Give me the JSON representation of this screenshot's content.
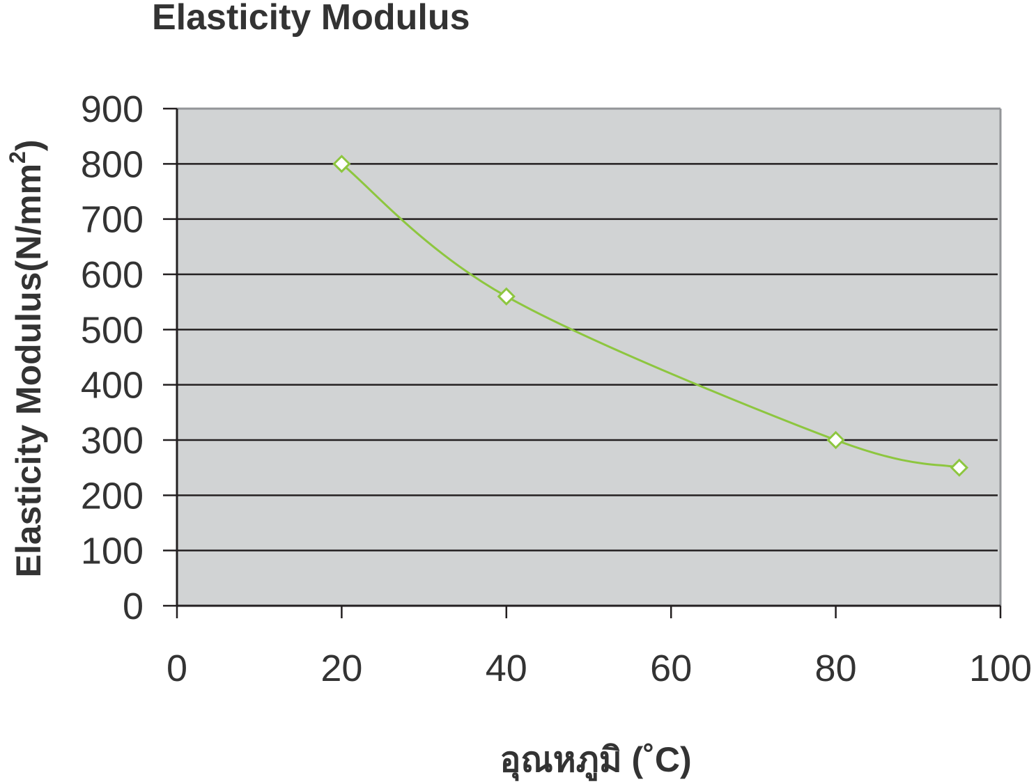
{
  "chart_data": {
    "type": "line",
    "title": "Elasticity Modulus",
    "xlabel": "อุณหภูมิ (˚C)",
    "ylabel": "Elasticity Modulus(N/mm",
    "ylabel_superscript": "2",
    "ylabel_close": ")",
    "xlim": [
      0,
      100
    ],
    "ylim": [
      0,
      900
    ],
    "xticks": [
      "0",
      "20",
      "40",
      "60",
      "80",
      "100"
    ],
    "yticks": [
      "0",
      "100",
      "200",
      "300",
      "400",
      "500",
      "600",
      "700",
      "800",
      "900"
    ],
    "grid": "horizontal",
    "smooth": true,
    "marker": "diamond-open",
    "series": [
      {
        "x": [
          20,
          40,
          80,
          95
        ],
        "y": [
          800,
          560,
          300,
          250
        ]
      }
    ],
    "colors": {
      "line": "#8dc63f",
      "plot_background": "#d1d3d4",
      "grid": "#231f20",
      "text": "#333333"
    }
  }
}
